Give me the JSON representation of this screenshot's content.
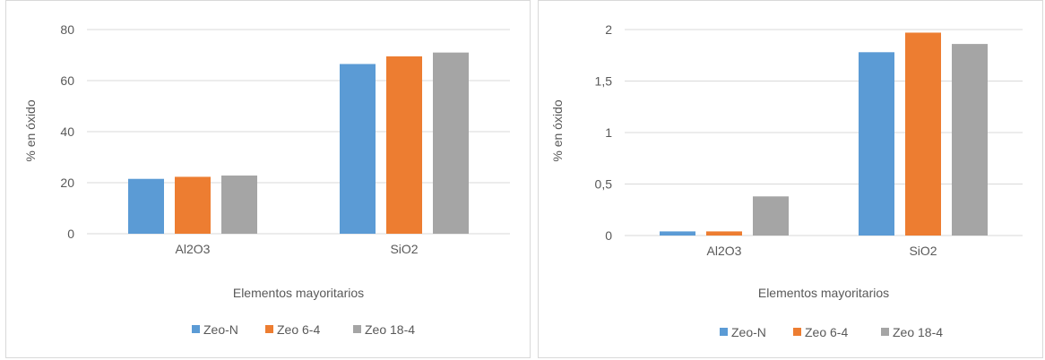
{
  "chart_data": [
    {
      "type": "bar",
      "categories": [
        "Al2O3",
        "SiO2"
      ],
      "series": [
        {
          "name": "Zeo-N",
          "values": [
            21.5,
            66.5
          ]
        },
        {
          "name": "Zeo 6-4",
          "values": [
            22.3,
            69.5
          ]
        },
        {
          "name": "Zeo 18-4",
          "values": [
            22.8,
            71.0
          ]
        }
      ],
      "title": "",
      "xlabel": "Elementos mayoritarios",
      "ylabel": "% en óxido",
      "ylim": [
        0,
        80
      ],
      "yticks": [
        "0",
        "20",
        "40",
        "60",
        "80"
      ],
      "grid": true,
      "legend": "bottom"
    },
    {
      "type": "bar",
      "categories": [
        "Al2O3",
        "SiO2"
      ],
      "series": [
        {
          "name": "Zeo-N",
          "values": [
            0.04,
            1.78
          ]
        },
        {
          "name": "Zeo 6-4",
          "values": [
            0.04,
            1.97
          ]
        },
        {
          "name": "Zeo 18-4",
          "values": [
            0.38,
            1.86
          ]
        }
      ],
      "title": "",
      "xlabel": "Elementos mayoritarios",
      "ylabel": "% en óxido",
      "ylim": [
        0,
        2
      ],
      "yticks": [
        "0",
        "0,5",
        "1",
        "1,5",
        "2"
      ],
      "grid": true,
      "legend": "bottom"
    }
  ],
  "colors": {
    "series": [
      "#5b9bd5",
      "#ed7d31",
      "#a5a5a5"
    ],
    "grid": "#d9d9d9",
    "text": "#595959"
  }
}
